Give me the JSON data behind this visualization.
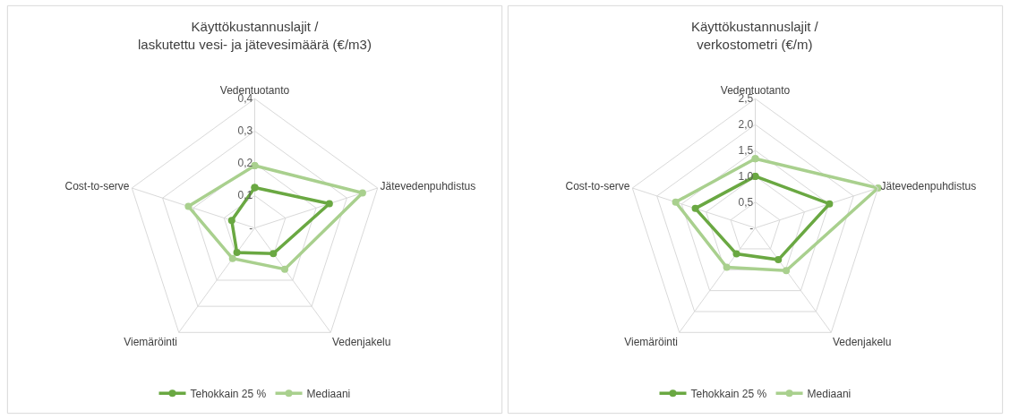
{
  "chart_data": [
    {
      "type": "radar",
      "title": "Käyttökustannuslajit /\nlaskutettu vesi- ja jätevesimäärä (€/m3)",
      "categories": [
        "Vedentuotanto",
        "Jätevedenpuhdistus",
        "Vedenjakelu",
        "Viemäröinti",
        "Cost-to-serve"
      ],
      "series": [
        {
          "name": "Tehokkain 25 %",
          "color": "#6aa842",
          "values": [
            0.125,
            0.243,
            0.098,
            0.094,
            0.075
          ]
        },
        {
          "name": "Mediaani",
          "color": "#a9d08e",
          "values": [
            0.193,
            0.351,
            0.158,
            0.117,
            0.216
          ]
        }
      ],
      "ylim": [
        0,
        0.4
      ],
      "yticks": [
        {
          "value": 0,
          "label": "-"
        },
        {
          "value": 0.1,
          "label": "0,1"
        },
        {
          "value": 0.2,
          "label": "0,2"
        },
        {
          "value": 0.3,
          "label": "0,3"
        },
        {
          "value": 0.4,
          "label": "0,4"
        }
      ],
      "grid": true,
      "legend": "bottom",
      "marker": "circle"
    },
    {
      "type": "radar",
      "title": "Käyttökustannuslajit /\nverkostometri (€/m)",
      "categories": [
        "Vedentuotanto",
        "Jätevedenpuhdistus",
        "Vedenjakelu",
        "Viemäröinti",
        "Cost-to-serve"
      ],
      "series": [
        {
          "name": "Tehokkain 25 %",
          "color": "#6aa842",
          "values": [
            1.0,
            1.51,
            0.76,
            0.62,
            1.22
          ]
        },
        {
          "name": "Mediaani",
          "color": "#a9d08e",
          "values": [
            1.34,
            2.5,
            1.02,
            0.94,
            1.62
          ]
        }
      ],
      "ylim": [
        0,
        2.5
      ],
      "yticks": [
        {
          "value": 0,
          "label": "-"
        },
        {
          "value": 0.5,
          "label": "0,5"
        },
        {
          "value": 1.0,
          "label": "1,0"
        },
        {
          "value": 1.5,
          "label": "1,5"
        },
        {
          "value": 2.0,
          "label": "2,0"
        },
        {
          "value": 2.5,
          "label": "2,5"
        }
      ],
      "grid": true,
      "legend": "bottom",
      "marker": "circle"
    }
  ]
}
